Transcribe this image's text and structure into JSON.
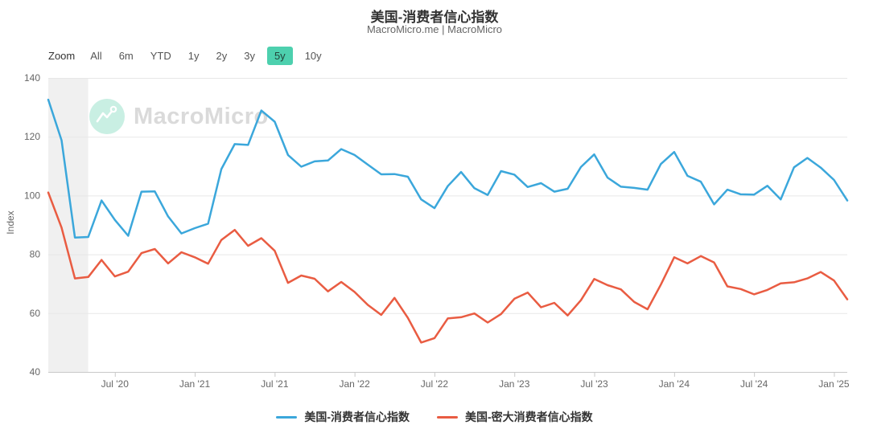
{
  "header": {
    "title": "美国-消费者信心指数",
    "subtitle": "MacroMicro.me | MacroMicro"
  },
  "toolbar": {
    "zoom_label": "Zoom",
    "buttons": [
      "All",
      "6m",
      "YTD",
      "1y",
      "2y",
      "3y",
      "5y",
      "10y"
    ],
    "selected": "5y"
  },
  "watermark": {
    "text": "MacroMicro"
  },
  "colors": {
    "series1": "#3ba7db",
    "series2": "#e95c42",
    "selected_button_bg": "#4dd0ae",
    "recession_band": "#f0f0f0",
    "gridline": "#e7e7e7",
    "axis": "#c9c9c9",
    "tick_text": "#666666",
    "watermark_mint": "#c9efe3"
  },
  "legend": {
    "items": [
      {
        "label": "美国-消费者信心指数",
        "color": "#3ba7db"
      },
      {
        "label": "美国-密大消费者信心指数",
        "color": "#e95c42"
      }
    ]
  },
  "chart_data": {
    "type": "line",
    "title": "美国-消费者信心指数",
    "ylabel": "Index",
    "ylim": [
      40,
      140
    ],
    "yticks": [
      40,
      60,
      80,
      100,
      120,
      140
    ],
    "grid": "horizontal",
    "legend_position": "bottom",
    "plot_band": {
      "from": "2020-02",
      "to": "2020-05"
    },
    "x": [
      "2020-02",
      "2020-03",
      "2020-04",
      "2020-05",
      "2020-06",
      "2020-07",
      "2020-08",
      "2020-09",
      "2020-10",
      "2020-11",
      "2020-12",
      "2021-01",
      "2021-02",
      "2021-03",
      "2021-04",
      "2021-05",
      "2021-06",
      "2021-07",
      "2021-08",
      "2021-09",
      "2021-10",
      "2021-11",
      "2021-12",
      "2022-01",
      "2022-02",
      "2022-03",
      "2022-04",
      "2022-05",
      "2022-06",
      "2022-07",
      "2022-08",
      "2022-09",
      "2022-10",
      "2022-11",
      "2022-12",
      "2023-01",
      "2023-02",
      "2023-03",
      "2023-04",
      "2023-05",
      "2023-06",
      "2023-07",
      "2023-08",
      "2023-09",
      "2023-10",
      "2023-11",
      "2023-12",
      "2024-01",
      "2024-02",
      "2024-03",
      "2024-04",
      "2024-05",
      "2024-06",
      "2024-07",
      "2024-08",
      "2024-09",
      "2024-10",
      "2024-11",
      "2024-12",
      "2025-01",
      "2025-02"
    ],
    "xticks": [
      {
        "index": 5,
        "label": "Jul '20"
      },
      {
        "index": 11,
        "label": "Jan '21"
      },
      {
        "index": 17,
        "label": "Jul '21"
      },
      {
        "index": 23,
        "label": "Jan '22"
      },
      {
        "index": 29,
        "label": "Jul '22"
      },
      {
        "index": 35,
        "label": "Jan '23"
      },
      {
        "index": 41,
        "label": "Jul '23"
      },
      {
        "index": 47,
        "label": "Jan '24"
      },
      {
        "index": 53,
        "label": "Jul '24"
      },
      {
        "index": 59,
        "label": "Jan '25"
      }
    ],
    "series": [
      {
        "name": "美国-消费者信心指数",
        "color": "#3ba7db",
        "values": [
          132.6,
          118.8,
          85.7,
          85.9,
          98.3,
          91.7,
          86.3,
          101.3,
          101.4,
          92.9,
          87.1,
          88.9,
          90.4,
          109.0,
          117.5,
          117.2,
          128.9,
          125.1,
          113.8,
          109.8,
          111.6,
          111.9,
          115.8,
          113.8,
          110.5,
          107.2,
          107.3,
          106.4,
          98.7,
          95.7,
          103.2,
          108.0,
          102.5,
          100.2,
          108.3,
          107.1,
          102.9,
          104.2,
          101.3,
          102.3,
          109.7,
          114.0,
          106.1,
          103.0,
          102.6,
          102.0,
          110.7,
          114.8,
          106.7,
          104.7,
          97.0,
          102.0,
          100.4,
          100.3,
          103.3,
          98.7,
          109.6,
          112.8,
          109.5,
          105.3,
          98.3
        ]
      },
      {
        "name": "美国-密大消费者信心指数",
        "color": "#e95c42",
        "values": [
          101.0,
          89.1,
          71.8,
          72.3,
          78.1,
          72.5,
          74.1,
          80.4,
          81.8,
          76.9,
          80.7,
          79.0,
          76.8,
          84.9,
          88.3,
          82.9,
          85.5,
          81.2,
          70.3,
          72.8,
          71.7,
          67.4,
          70.6,
          67.2,
          62.8,
          59.4,
          65.2,
          58.4,
          50.0,
          51.5,
          58.2,
          58.6,
          59.9,
          56.8,
          59.7,
          64.9,
          67.0,
          62.0,
          63.5,
          59.2,
          64.4,
          71.6,
          69.5,
          68.1,
          63.8,
          61.3,
          69.7,
          79.0,
          76.9,
          79.4,
          77.2,
          69.1,
          68.2,
          66.4,
          67.9,
          70.1,
          70.5,
          71.8,
          74.0,
          71.1,
          64.7
        ]
      }
    ]
  }
}
